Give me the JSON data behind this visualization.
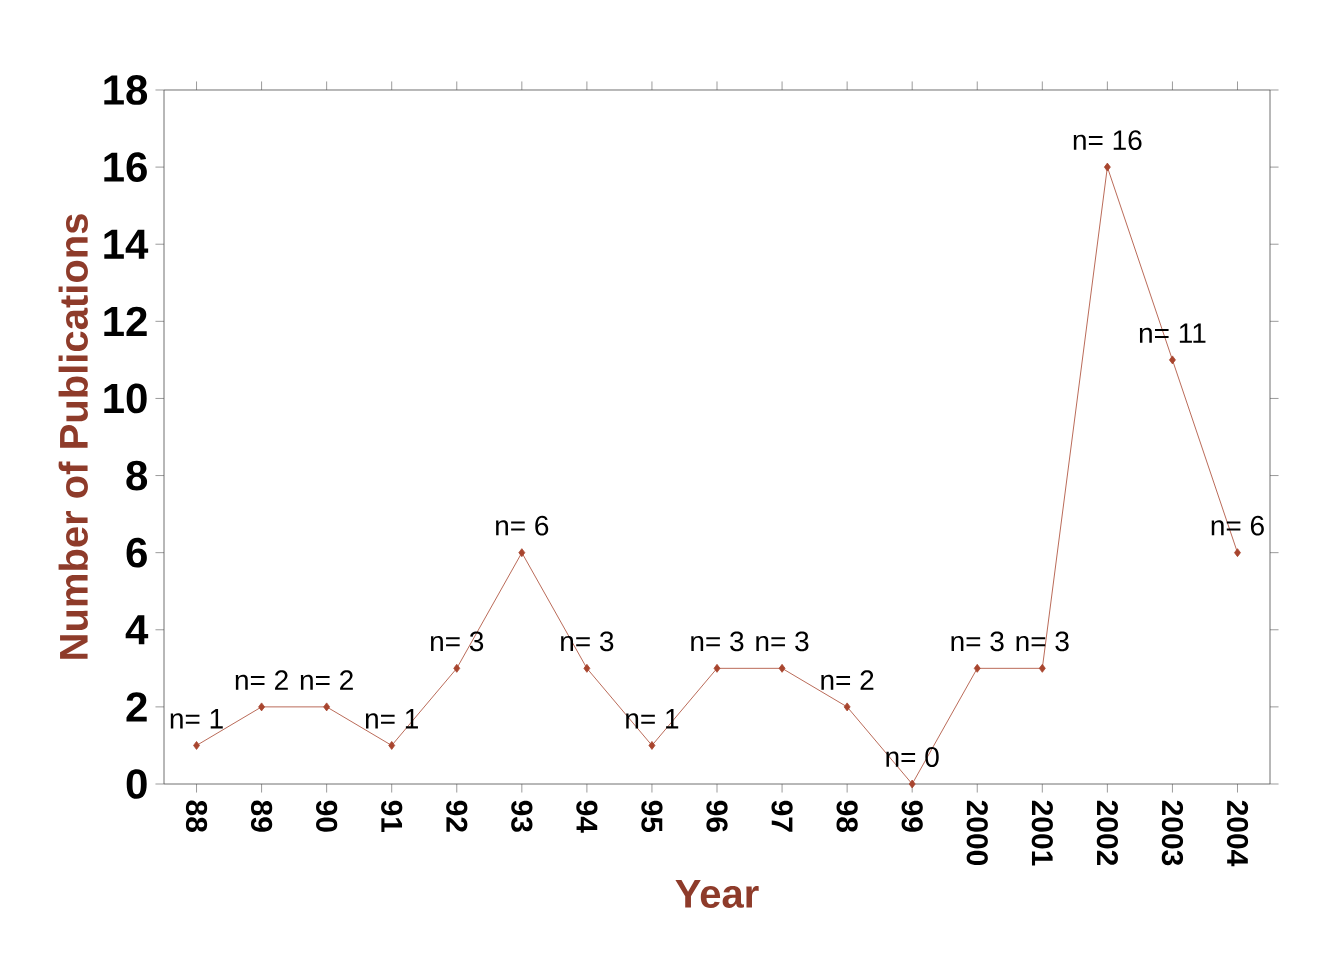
{
  "chart_data": {
    "type": "line",
    "xlabel": "Year",
    "ylabel": "Number of Publications",
    "categories": [
      "88",
      "89",
      "90",
      "91",
      "92",
      "93",
      "94",
      "95",
      "96",
      "97",
      "98",
      "99",
      "2000",
      "2001",
      "2002",
      "2003",
      "2004"
    ],
    "values": [
      1,
      2,
      2,
      1,
      3,
      6,
      3,
      1,
      3,
      3,
      2,
      0,
      3,
      3,
      16,
      11,
      6
    ],
    "value_labels": [
      "n= 1",
      "n= 2",
      "n= 2",
      "n= 1",
      "n= 3",
      "n= 6",
      "n= 3",
      "n= 1",
      "n= 3",
      "n= 3",
      "n= 2",
      "n= 0",
      "n= 3",
      "n= 3",
      "n= 16",
      "n= 11",
      "n= 6"
    ],
    "color": "#a8452e",
    "marker": "diamond",
    "line_style": "solid",
    "grid": false,
    "ylim": [
      0,
      18
    ],
    "yticks": [
      0,
      2,
      4,
      6,
      8,
      10,
      12,
      14,
      16,
      18
    ]
  }
}
